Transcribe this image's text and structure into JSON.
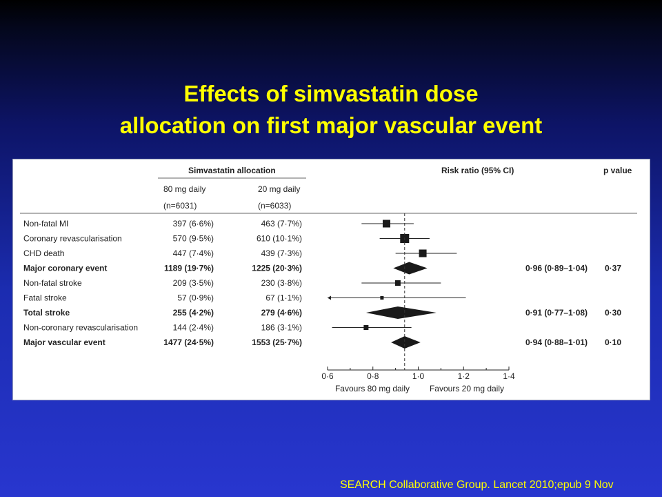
{
  "slide": {
    "title_line1": "Effects of simvastatin dose",
    "title_line2": "allocation on first major vascular event",
    "citation": "SEARCH Collaborative Group. Lancet 2010;epub 9 Nov"
  },
  "colors": {
    "title": "#ffff00",
    "background": "#1b2cb0",
    "panel": "#ffffff",
    "marker": "#1a1a1a"
  },
  "chart_data": {
    "type": "forest",
    "headers": {
      "group": "Simvastatin allocation",
      "col1_name": "80 mg daily",
      "col1_n": "(n=6031)",
      "col2_name": "20 mg daily",
      "col2_n": "(n=6033)",
      "risk_ratio": "Risk ratio (95% CI)",
      "p_value": "p value"
    },
    "xaxis": {
      "range": [
        0.6,
        1.4
      ],
      "ticks": [
        0.6,
        0.8,
        1.0,
        1.2,
        1.4
      ],
      "tick_labels": [
        "0·6",
        "0·8",
        "1·0",
        "1·2",
        "1·4"
      ],
      "reference_line": 0.94,
      "favours_left": "Favours 80 mg daily",
      "favours_right": "Favours 20 mg daily"
    },
    "rows": [
      {
        "label": "Non-fatal MI",
        "bold": false,
        "c1": "397 (6·6%)",
        "c2": "463 (7·7%)",
        "rr": 0.86,
        "lo": 0.75,
        "hi": 0.98,
        "shape": "square",
        "size": 11,
        "ci_text": "",
        "p": ""
      },
      {
        "label": "Coronary revascularisation",
        "bold": false,
        "c1": "570 (9·5%)",
        "c2": "610 (10·1%)",
        "rr": 0.94,
        "lo": 0.83,
        "hi": 1.05,
        "shape": "square",
        "size": 13,
        "ci_text": "",
        "p": ""
      },
      {
        "label": "CHD death",
        "bold": false,
        "c1": "447 (7·4%)",
        "c2": "439 (7·3%)",
        "rr": 1.02,
        "lo": 0.9,
        "hi": 1.17,
        "shape": "square",
        "size": 11,
        "ci_text": "",
        "p": ""
      },
      {
        "label": "Major coronary event",
        "bold": true,
        "c1": "1189 (19·7%)",
        "c2": "1225 (20·3%)",
        "rr": 0.96,
        "lo": 0.89,
        "hi": 1.04,
        "shape": "diamond",
        "size": 0,
        "ci_text": "0·96 (0·89–1·04)",
        "p": "0·37"
      },
      {
        "label": "Non-fatal stroke",
        "bold": false,
        "c1": "209 (3·5%)",
        "c2": "230 (3·8%)",
        "rr": 0.91,
        "lo": 0.75,
        "hi": 1.1,
        "shape": "square",
        "size": 8,
        "ci_text": "",
        "p": ""
      },
      {
        "label": "Fatal stroke",
        "bold": false,
        "c1": "57 (0·9%)",
        "c2": "67 (1·1%)",
        "rr": 0.84,
        "lo": 0.6,
        "hi": 1.21,
        "shape": "square",
        "size": 5,
        "ci_text": "",
        "p": "",
        "lo_arrow": true
      },
      {
        "label": "Total stroke",
        "bold": true,
        "c1": "255 (4·2%)",
        "c2": "279 (4·6%)",
        "rr": 0.91,
        "lo": 0.77,
        "hi": 1.08,
        "shape": "diamond",
        "size": 0,
        "ci_text": "0·91 (0·77–1·08)",
        "p": "0·30"
      },
      {
        "label": "Non-coronary revascularisation",
        "bold": false,
        "c1": "144 (2·4%)",
        "c2": "186 (3·1%)",
        "rr": 0.77,
        "lo": 0.62,
        "hi": 0.97,
        "shape": "square",
        "size": 7,
        "ci_text": "",
        "p": ""
      },
      {
        "label": "Major vascular event",
        "bold": true,
        "c1": "1477 (24·5%)",
        "c2": "1553 (25·7%)",
        "rr": 0.94,
        "lo": 0.88,
        "hi": 1.01,
        "shape": "diamond",
        "size": 0,
        "ci_text": "0·94 (0·88–1·01)",
        "p": "0·10"
      }
    ]
  }
}
